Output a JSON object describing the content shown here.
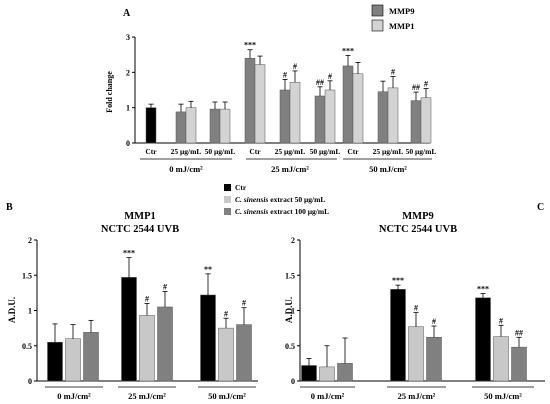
{
  "chart_data": [
    {
      "panel": "A",
      "type": "bar",
      "ylabel": "Fold change",
      "ylim": [
        0,
        3
      ],
      "yticks": [
        0,
        1,
        2,
        3
      ],
      "legend": [
        "MMP9",
        "MMP1"
      ],
      "categories": [
        "Ctr",
        "25 µg/mL",
        "50 µg/mL",
        "Ctr",
        "25 µg/mL",
        "50 µg/mL",
        "Ctr",
        "25 µg/mL",
        "50 µg/mL"
      ],
      "groups": [
        "0 mJ/cm²",
        "25 mJ/cm²",
        "50 mJ/cm²"
      ],
      "series": [
        {
          "name": "MMP9",
          "color": "#808080",
          "values": [
            1.0,
            0.88,
            0.96,
            2.4,
            1.5,
            1.33,
            2.18,
            1.45,
            1.2
          ],
          "errors": [
            0.1,
            0.22,
            0.2,
            0.24,
            0.3,
            0.26,
            0.3,
            0.3,
            0.24
          ],
          "marks": [
            "",
            "",
            "",
            "***",
            "#",
            "##",
            "***",
            "",
            "##"
          ]
        },
        {
          "name": "MMP1",
          "color": "#d3d3d3",
          "values": [
            null,
            1.0,
            0.96,
            2.22,
            1.72,
            1.5,
            1.96,
            1.56,
            1.28
          ],
          "errors": [
            0,
            0.18,
            0.2,
            0.24,
            0.32,
            0.26,
            0.32,
            0.32,
            0.26
          ],
          "marks": [
            "",
            "",
            "",
            "",
            "#",
            "#",
            "",
            "#",
            "#"
          ]
        }
      ],
      "first_bar_color": "#000000"
    },
    {
      "panel": "B",
      "type": "bar",
      "title_line1": "MMP1",
      "title_line2": "NCTC 2544 UVB",
      "ylabel": "A.D.U.",
      "ylim": [
        0,
        2
      ],
      "yticks": [
        0,
        0.5,
        1,
        1.5,
        2
      ],
      "groups": [
        "0 mJ/cm²",
        "25 mJ/cm²",
        "50 mJ/cm²"
      ],
      "series": [
        {
          "name": "Ctr",
          "color": "#000000",
          "values": [
            0.55,
            1.47,
            1.22
          ],
          "errors": [
            0.26,
            0.28,
            0.3
          ],
          "marks": [
            "",
            "***",
            "**"
          ]
        },
        {
          "name": "C. sinensis extract 50 µg/mL",
          "color": "#c8c8c8",
          "values": [
            0.6,
            0.93,
            0.75
          ],
          "errors": [
            0.2,
            0.17,
            0.14
          ],
          "marks": [
            "",
            "#",
            "#"
          ]
        },
        {
          "name": "C. sinensis extract 100 µg/mL",
          "color": "#808080",
          "values": [
            0.69,
            1.05,
            0.8
          ],
          "errors": [
            0.17,
            0.22,
            0.24
          ],
          "marks": [
            "",
            "#",
            "#"
          ]
        }
      ]
    },
    {
      "panel": "C",
      "type": "bar",
      "title_line1": "MMP9",
      "title_line2": "NCTC 2544 UVB",
      "ylabel": "A.D.U.",
      "ylim": [
        0,
        2
      ],
      "yticks": [
        0,
        0.5,
        1,
        1.5,
        2
      ],
      "groups": [
        "0 mJ/cm²",
        "25 mJ/cm²",
        "50 mJ/cm²"
      ],
      "series": [
        {
          "name": "Ctr",
          "color": "#000000",
          "values": [
            0.22,
            1.3,
            1.18
          ],
          "errors": [
            0.1,
            0.06,
            0.06
          ],
          "marks": [
            "",
            "***",
            "***"
          ]
        },
        {
          "name": "C. sinensis extract 50 µg/mL",
          "color": "#c8c8c8",
          "values": [
            0.2,
            0.77,
            0.63
          ],
          "errors": [
            0.3,
            0.2,
            0.16
          ],
          "marks": [
            "",
            "#",
            "#"
          ]
        },
        {
          "name": "C. sinensis extract 100 µg/mL",
          "color": "#808080",
          "values": [
            0.25,
            0.62,
            0.48
          ],
          "errors": [
            0.36,
            0.16,
            0.14
          ],
          "marks": [
            "",
            "#",
            "##"
          ]
        }
      ]
    }
  ],
  "legend_bc": {
    "items": [
      {
        "prefix": "",
        "italic": "",
        "text": "Ctr",
        "color": "#000000"
      },
      {
        "prefix": "",
        "italic": "C. sinensis",
        "text": " extract 50 µg/mL",
        "color": "#c8c8c8"
      },
      {
        "prefix": "",
        "italic": "C. sinensis",
        "text": " extract 100 µg/mL",
        "color": "#808080"
      }
    ]
  }
}
